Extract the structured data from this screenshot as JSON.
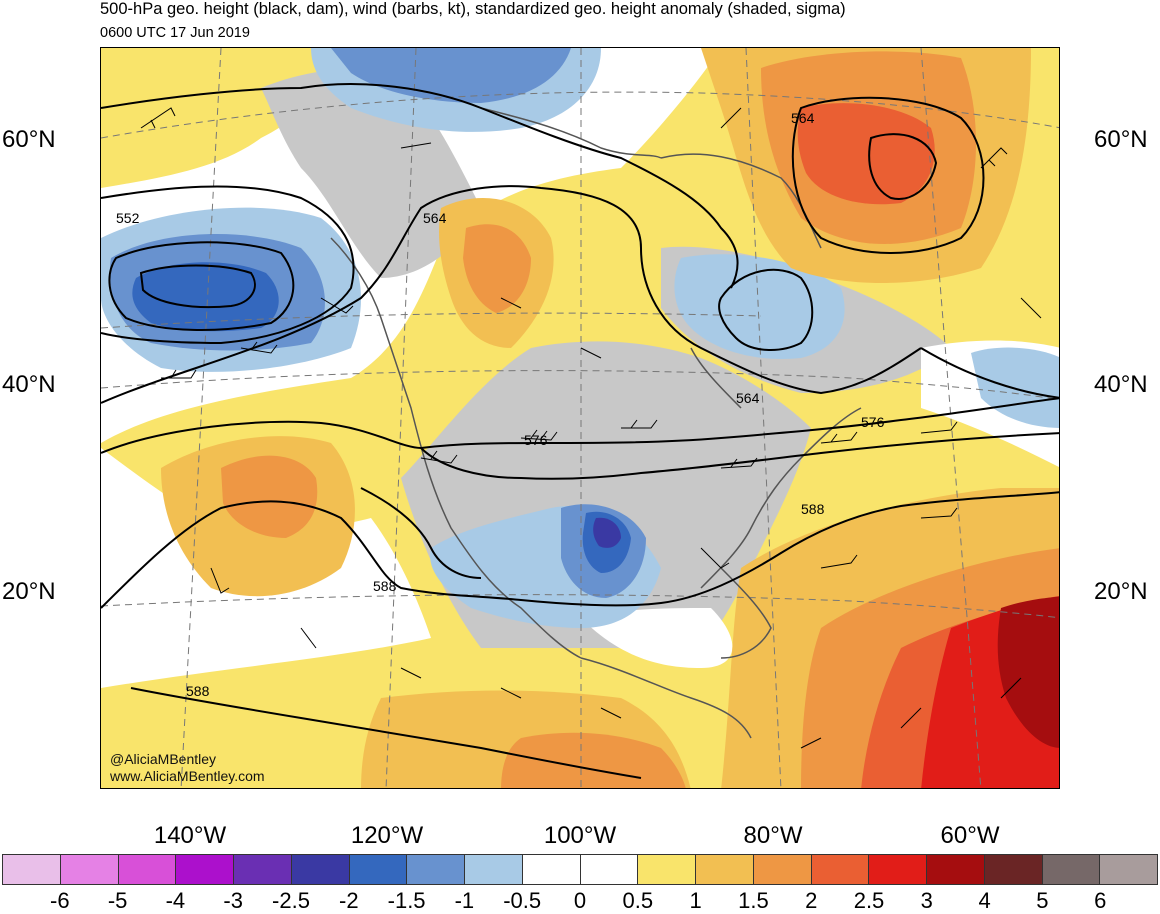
{
  "header": {
    "title": "500-hPa geo. height (black, dam), wind (barbs, kt), standardized geo. height anomaly (shaded, sigma)",
    "valid_time": "0600 UTC 17 Jun 2019"
  },
  "map": {
    "latitude_labels": [
      "60°N",
      "40°N",
      "20°N"
    ],
    "longitude_labels": [
      "140°W",
      "120°W",
      "100°W",
      "80°W",
      "60°W"
    ],
    "contour_labels": [
      "552",
      "564",
      "564",
      "564",
      "576",
      "576",
      "588",
      "588",
      "588"
    ],
    "credit_handle": "@AliciaMBentley",
    "credit_url": "www.AliciaMBentley.com"
  },
  "colorbar": {
    "colors": [
      "#e9bfe9",
      "#e581e5",
      "#d850d8",
      "#ac10cc",
      "#6a2fb3",
      "#3a39a3",
      "#3468be",
      "#6892cf",
      "#a8cae6",
      "#ffffff",
      "#ffffff",
      "#f9e46b",
      "#f2bf52",
      "#ee9744",
      "#ea5f33",
      "#e11d18",
      "#a50d0f",
      "#6a2525",
      "#766868",
      "#a89c9c"
    ],
    "tick_labels": [
      "-6",
      "-5",
      "-4",
      "-3",
      "-2.5",
      "-2",
      "-1.5",
      "-1",
      "-0.5",
      "0",
      "0.5",
      "1",
      "1.5",
      "2",
      "2.5",
      "3",
      "4",
      "5",
      "6"
    ]
  },
  "colors": {
    "land_gray": "#c8c8c8",
    "contour_line": "#000000",
    "coastline": "#555555"
  }
}
